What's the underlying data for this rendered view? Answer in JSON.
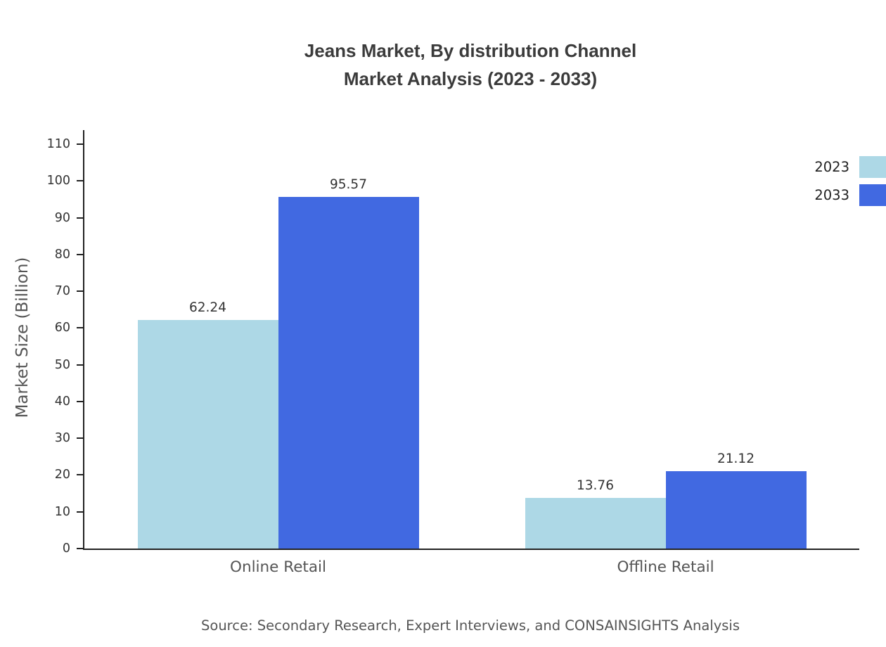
{
  "title": {
    "line1": "Jeans Market, By distribution Channel",
    "line2": "Market Analysis (2023 - 2033)"
  },
  "source": "Source: Secondary Research, Expert Interviews, and CONSAINSIGHTS Analysis",
  "chart_data": {
    "type": "bar",
    "categories": [
      "Online Retail",
      "Offline Retail"
    ],
    "series": [
      {
        "name": "2023",
        "color": "#add8e6",
        "values": [
          62.24,
          13.76
        ]
      },
      {
        "name": "2033",
        "color": "#4169e1",
        "values": [
          95.57,
          21.12
        ]
      }
    ],
    "title": "Jeans Market, By distribution Channel Market Analysis (2023 - 2033)",
    "xlabel": "",
    "ylabel": "Market Size (Billion)",
    "ylim": [
      0,
      110
    ],
    "yticks": [
      0,
      10,
      20,
      30,
      40,
      50,
      60,
      70,
      80,
      90,
      100,
      110
    ],
    "grid": false,
    "legend_position": "top-right",
    "value_label_decimals": 2
  }
}
